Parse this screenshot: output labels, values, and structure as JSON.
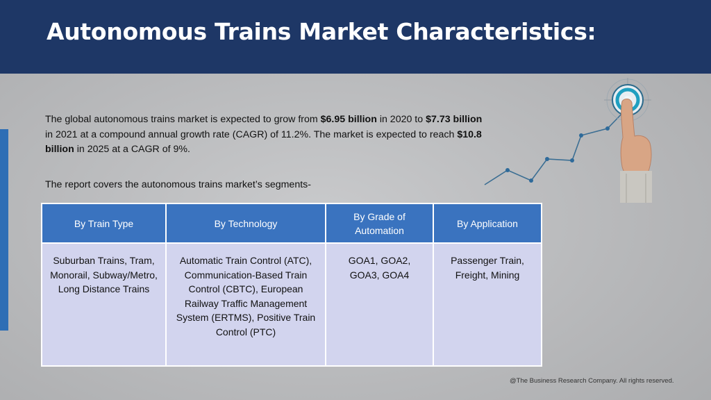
{
  "title": "Autonomous Trains Market Characteristics:",
  "intro": {
    "p1": "The global autonomous trains market is expected to grow from ",
    "v1": "$6.95 billion",
    "p2": " in 2020 to ",
    "v2": "$7.73 billion",
    "p3": " in 2021 at a compound annual growth rate (CAGR) of 11.2%. The market is expected to reach ",
    "v3": "$10.8 billion",
    "p4": " in 2025 at a CAGR of 9%."
  },
  "segments_line": "The report covers the autonomous trains market’s segments-",
  "table": {
    "headers": [
      "By Train Type",
      "By Technology",
      "By Grade of Automation",
      "By Application"
    ],
    "cells": [
      "Suburban Trains, Tram, Monorail, Subway/Metro, Long Distance Trains",
      "Automatic Train Control (ATC), Communication-Based Train Control (CBTC), European Railway Traffic Management System (ERTMS), Positive Train Control (PTC)",
      "GOA1, GOA2, GOA3, GOA4",
      "Passenger Train, Freight, Mining"
    ]
  },
  "footer": "@The Business Research Company. All rights reserved.",
  "colors": {
    "header": "#1e3766",
    "accent": "#2e6eb5",
    "table_header": "#3a73bf",
    "table_cell": "#d2d4ee"
  },
  "icons": [
    "growth-chart-target-icon"
  ]
}
